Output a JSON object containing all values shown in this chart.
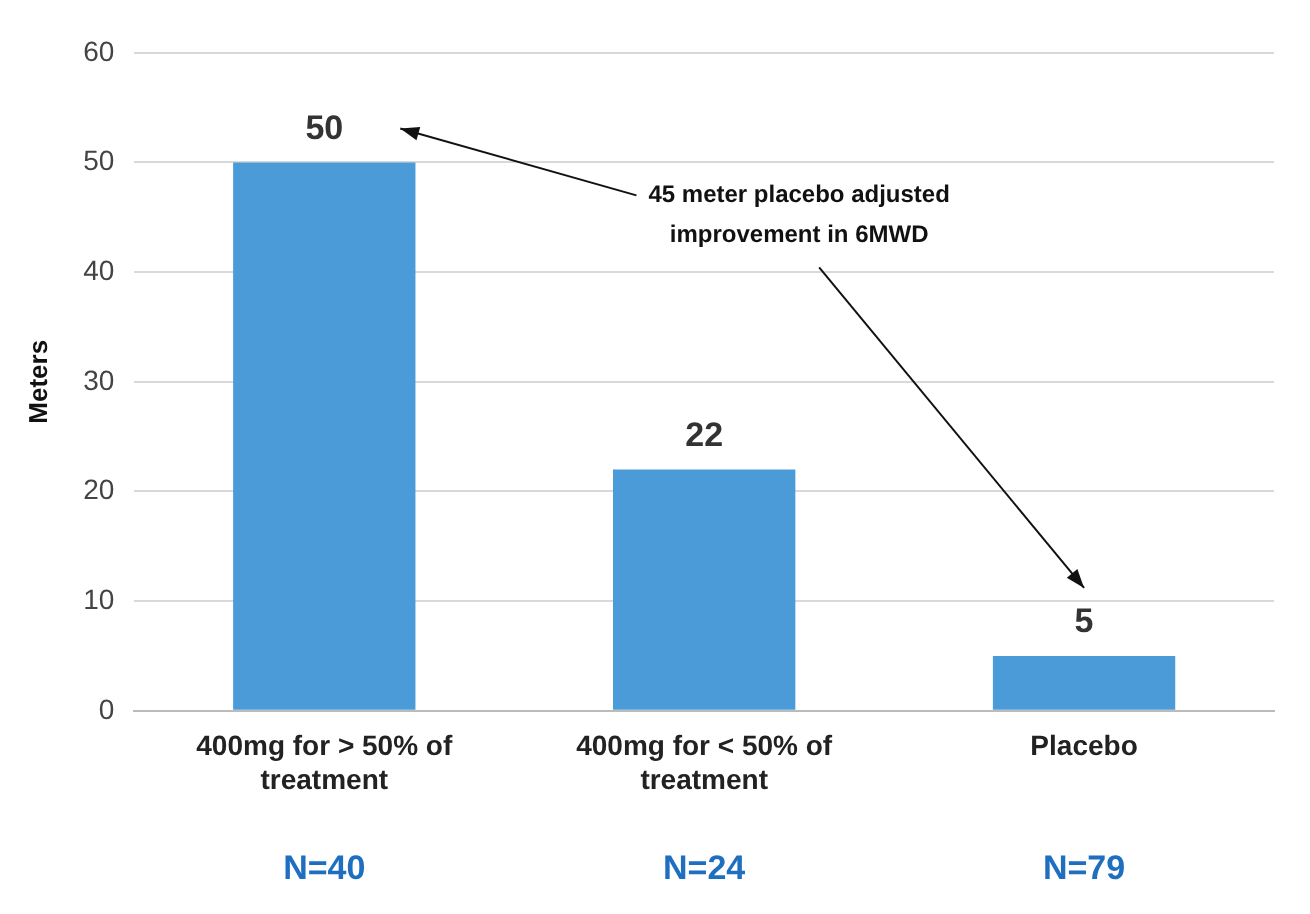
{
  "chart_data": {
    "type": "bar",
    "ylabel": "Meters",
    "categories": [
      "400mg for > 50% of treatment",
      "400mg for < 50% of treatment",
      "Placebo"
    ],
    "values": [
      50,
      22,
      5
    ],
    "color": "#4b9bd8",
    "ylim": [
      0,
      60
    ],
    "yticks": [
      0,
      10,
      20,
      30,
      40,
      50,
      60
    ],
    "grid": "y",
    "legend": false,
    "data_labels": true,
    "annotations": [
      "45 meter placebo adjusted improvement in 6MWD",
      "N=40",
      "N=24",
      "N=79"
    ]
  }
}
